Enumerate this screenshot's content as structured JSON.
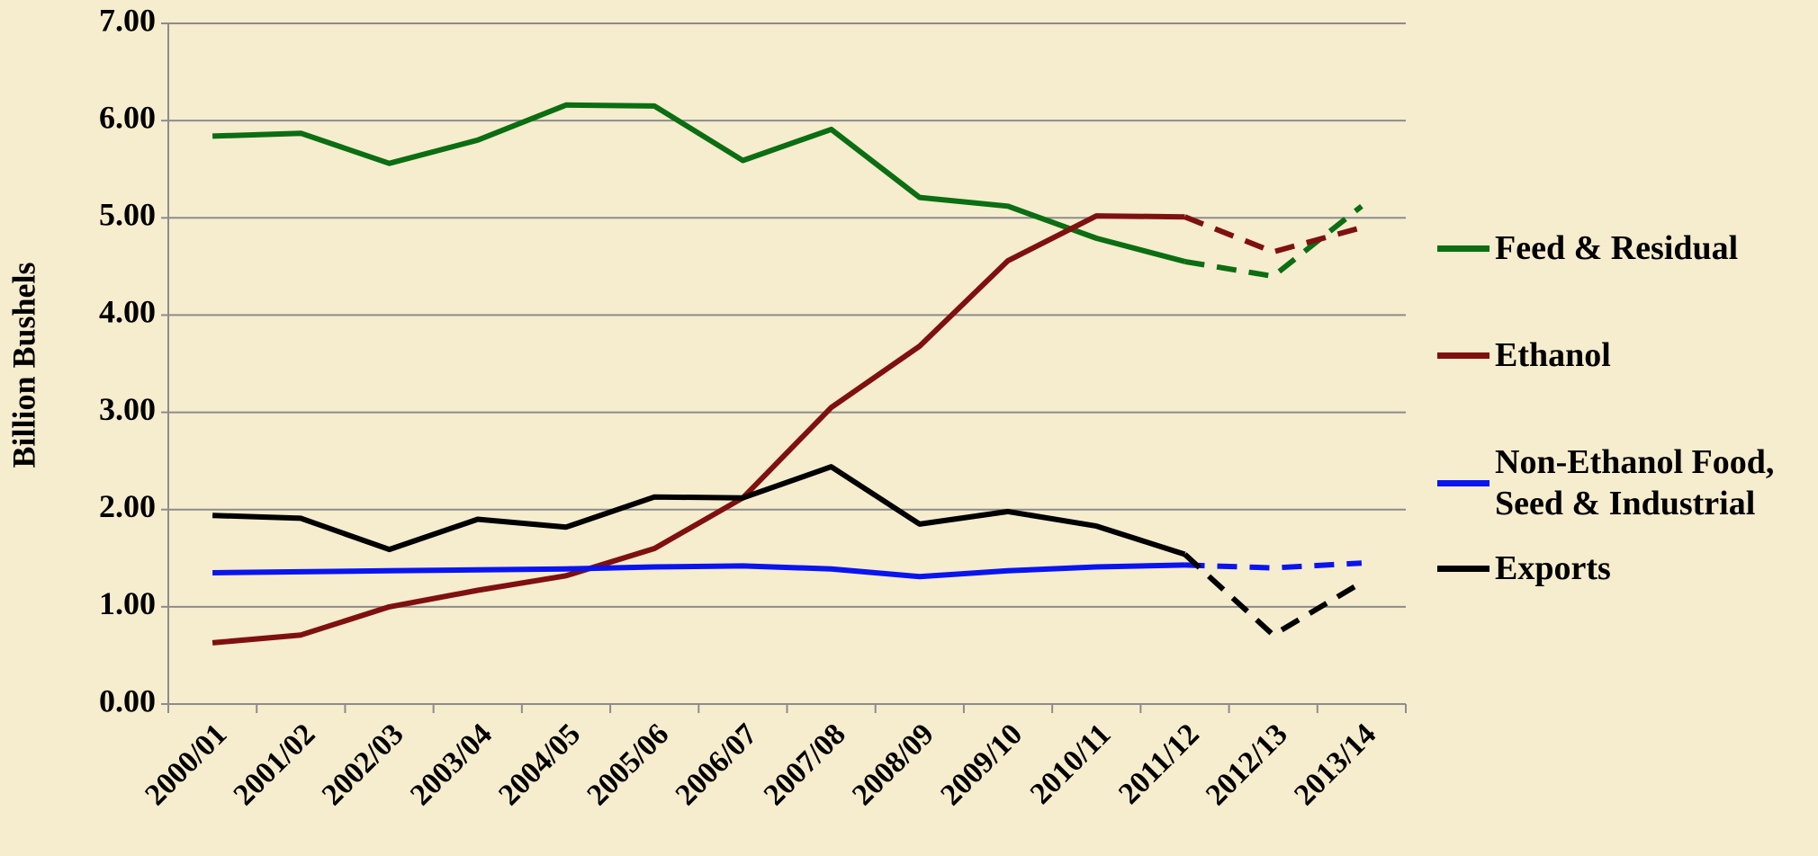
{
  "chart_data": {
    "type": "line",
    "y_label": "Billion Bushels",
    "categories": [
      "2000/01",
      "2001/02",
      "2002/03",
      "2003/04",
      "2004/05",
      "2005/06",
      "2006/07",
      "2007/08",
      "2008/09",
      "2009/10",
      "2010/11",
      "2011/12",
      "2012/13",
      "2013/14"
    ],
    "series": [
      {
        "name": "Feed & Residual",
        "color": "#0b6e12",
        "values": [
          5.84,
          5.87,
          5.56,
          5.8,
          6.16,
          6.15,
          5.59,
          5.91,
          5.21,
          5.12,
          4.79,
          4.55,
          4.4,
          5.12
        ]
      },
      {
        "name": "Ethanol",
        "color": "#7f1010",
        "values": [
          0.63,
          0.71,
          1.0,
          1.17,
          1.32,
          1.6,
          2.12,
          3.05,
          3.68,
          4.56,
          5.02,
          5.01,
          4.65,
          4.9
        ]
      },
      {
        "name": "Non-Ethanol Food, Seed & Industrial",
        "color": "#0a14f0",
        "values": [
          1.35,
          1.36,
          1.37,
          1.38,
          1.39,
          1.41,
          1.42,
          1.39,
          1.31,
          1.37,
          1.41,
          1.43,
          1.4,
          1.45
        ]
      },
      {
        "name": "Exports",
        "color": "#000000",
        "values": [
          1.94,
          1.91,
          1.59,
          1.9,
          1.82,
          2.13,
          2.12,
          2.44,
          1.85,
          1.98,
          1.83,
          1.54,
          0.71,
          1.25
        ]
      }
    ],
    "dashed_from": 11,
    "ylim": [
      0,
      7
    ],
    "yticks": [
      {
        "value": 0,
        "label": "0.00"
      },
      {
        "value": 1,
        "label": "1.00"
      },
      {
        "value": 2,
        "label": "2.00"
      },
      {
        "value": 3,
        "label": "3.00"
      },
      {
        "value": 4,
        "label": "4.00"
      },
      {
        "value": 5,
        "label": "5.00"
      },
      {
        "value": 6,
        "label": "6.00"
      },
      {
        "value": 7,
        "label": "7.00"
      }
    ],
    "grid": true,
    "legend": "right"
  }
}
